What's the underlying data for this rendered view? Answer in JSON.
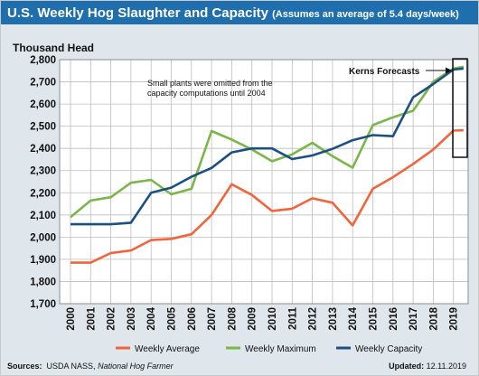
{
  "header": {
    "title": "U.S. Weekly Hog Slaughter and Capacity",
    "subtitle": "(Assumes an average of 5.4 days/week)"
  },
  "footer": {
    "sources_label": "Sources:",
    "sources_text": "USDA NASS,",
    "sources_italic": "National Hog Farmer",
    "updated_label": "Updated:",
    "updated_value": "12.11.2019"
  },
  "chart_data": {
    "type": "line",
    "title": "U.S. Weekly Hog Slaughter and Capacity",
    "subtitle": "(Assumes an average of 5.4 days/week)",
    "ylabel": "Thousand Head",
    "ylim": [
      1700,
      2800
    ],
    "yticks": [
      1700,
      1800,
      1900,
      2000,
      2100,
      2200,
      2300,
      2400,
      2500,
      2600,
      2700,
      2800
    ],
    "ytick_labels": [
      "1,700",
      "1,800",
      "1,900",
      "2,000",
      "2,100",
      "2,200",
      "2,300",
      "2,400",
      "2,500",
      "2,600",
      "2,700",
      "2,800"
    ],
    "categories": [
      "2000",
      "2001",
      "2002",
      "2003",
      "2004",
      "2005",
      "2006",
      "2007",
      "2008",
      "2009",
      "2010",
      "2011",
      "2012",
      "2013",
      "2014",
      "2015",
      "2016",
      "2017",
      "2018",
      "2019"
    ],
    "grid": true,
    "legend_position": "bottom",
    "series": [
      {
        "name": "Weekly Average",
        "color": "#f2643a",
        "x": [
          2000,
          2001,
          2002,
          2003,
          2004,
          2005,
          2006,
          2007,
          2008,
          2009,
          2010,
          2011,
          2012,
          2013,
          2014,
          2015,
          2016,
          2017,
          2018,
          2019,
          2019.5
        ],
        "values": [
          1885,
          1885,
          1928,
          1940,
          1987,
          1992,
          2013,
          2100,
          2238,
          2190,
          2118,
          2128,
          2175,
          2155,
          2053,
          2218,
          2270,
          2330,
          2395,
          2480,
          2482
        ]
      },
      {
        "name": "Weekly Maximum",
        "color": "#7ab648",
        "x": [
          2000,
          2001,
          2002,
          2003,
          2004,
          2005,
          2006,
          2007,
          2008,
          2009,
          2010,
          2011,
          2012,
          2013,
          2014,
          2015,
          2016,
          2017,
          2018,
          2019,
          2019.5
        ],
        "values": [
          2090,
          2165,
          2180,
          2245,
          2258,
          2193,
          2218,
          2478,
          2440,
          2395,
          2342,
          2373,
          2425,
          2365,
          2313,
          2505,
          2540,
          2570,
          2700,
          2760,
          2768
        ]
      },
      {
        "name": "Weekly Capacity",
        "color": "#1c4f82",
        "x": [
          2000,
          2001,
          2002,
          2003,
          2004,
          2005,
          2006,
          2007,
          2008,
          2009,
          2010,
          2011,
          2012,
          2013,
          2014,
          2015,
          2016,
          2017,
          2018,
          2019,
          2019.5
        ],
        "values": [
          2058,
          2058,
          2058,
          2065,
          2200,
          2223,
          2272,
          2312,
          2382,
          2400,
          2400,
          2352,
          2368,
          2398,
          2437,
          2460,
          2455,
          2630,
          2690,
          2755,
          2760
        ]
      }
    ],
    "annotations": [
      {
        "text": "Small plants were omitted from the capacity computations until 2004"
      },
      {
        "text": "Kerns Forecasts"
      }
    ]
  }
}
